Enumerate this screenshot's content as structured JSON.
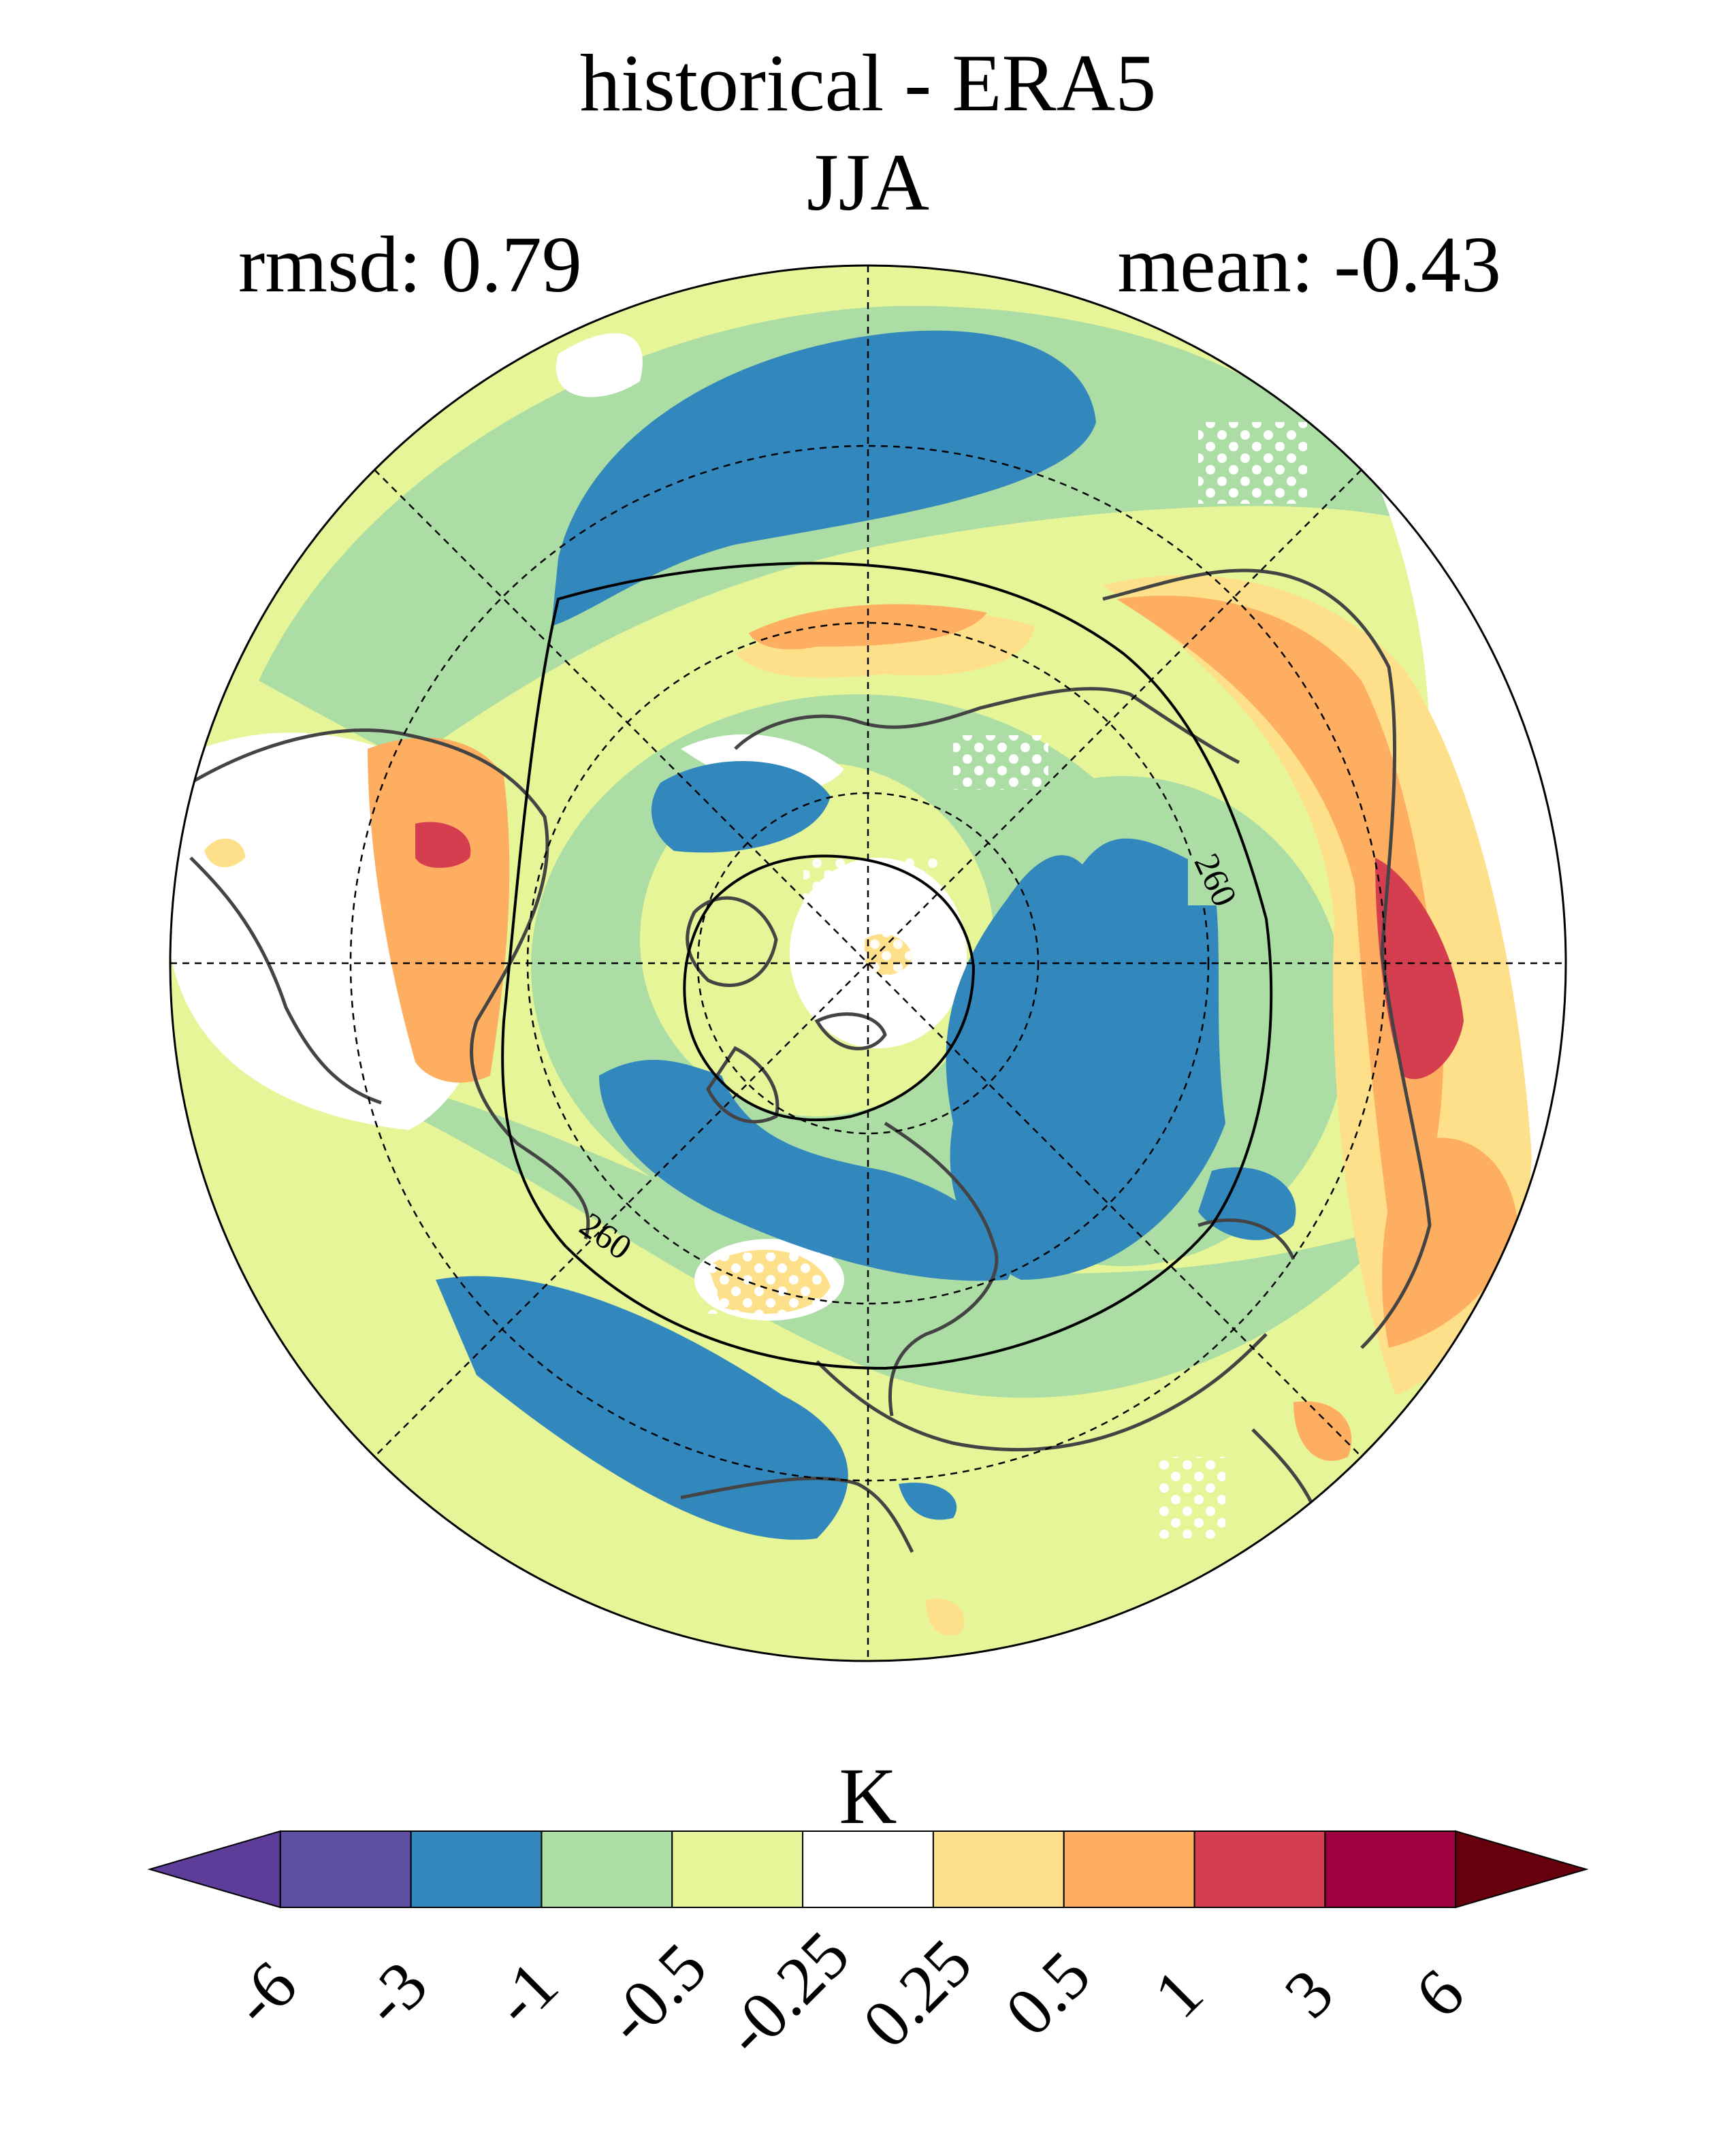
{
  "header": {
    "title": "historical - ERA5",
    "season": "JJA",
    "rmsd": "rmsd: 0.79",
    "mean": "mean: -0.43"
  },
  "map": {
    "projection": "north polar stereographic",
    "contour_label": "260",
    "stippling": "white dots over non-significant regions",
    "colors": {
      "land_outline": "#444444",
      "grid": "#000000",
      "contour": "#000000"
    }
  },
  "colorbar": {
    "unit": "K",
    "ticks": [
      "-6",
      "-3",
      "-1",
      "-0.5",
      "-0.25",
      "0.25",
      "0.5",
      "1",
      "3",
      "6"
    ],
    "colors": [
      "#5e3c99",
      "#5e4fa2",
      "#3288bd",
      "#abdda4",
      "#e6f598",
      "#ffffff",
      "#fee08b",
      "#fdae61",
      "#d53e4f",
      "#9e0142",
      "#67000d"
    ]
  }
}
